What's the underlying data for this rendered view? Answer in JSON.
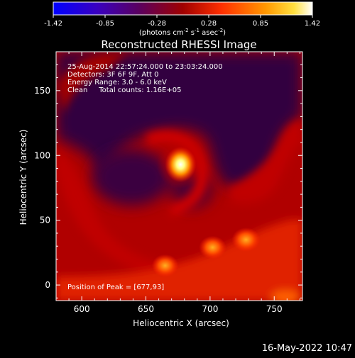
{
  "colorbar": {
    "ticks": [
      "-1.42",
      "-0.85",
      "-0.28",
      "0.28",
      "0.85",
      "1.42"
    ],
    "units_label": "(photons cm",
    "units_exp1": "-2",
    "units_mid": " s",
    "units_exp2": "-1",
    "units_mid2": " asec",
    "units_exp3": "-2",
    "units_end": ")",
    "colors": [
      "#0000ff",
      "#4b00a0",
      "#7a0040",
      "#c80000",
      "#ff5000",
      "#ffc000",
      "#ffffff"
    ]
  },
  "chart_data": {
    "type": "heatmap",
    "title": "Reconstructed RHESSI Image",
    "xlabel": "Heliocentric X (arcsec)",
    "ylabel": "Heliocentric Y (arcsec)",
    "xlim": [
      580,
      772
    ],
    "ylim": [
      -12,
      180
    ],
    "xticks": [
      600,
      650,
      700,
      750
    ],
    "yticks": [
      0,
      50,
      100,
      150
    ],
    "info_lines": [
      "25-Aug-2014 22:57:24.000 to 23:03:24.000",
      "Detectors: 3F 6F 9F, Att 0",
      "Energy Range: 3.0 - 6.0 keV",
      "Clean     Total counts: 1.16E+05"
    ],
    "peak_label": "Position of Peak = [677,93]",
    "peak": [
      677,
      93
    ],
    "sources": [
      {
        "x": 677,
        "y": 93,
        "intensity": 1.42
      },
      {
        "x": 728,
        "y": 35,
        "intensity": 0.75
      },
      {
        "x": 702,
        "y": 29,
        "intensity": 0.65
      },
      {
        "x": 665,
        "y": 15,
        "intensity": 0.6
      }
    ]
  },
  "footer": {
    "timestamp": "16-May-2022 10:47"
  }
}
